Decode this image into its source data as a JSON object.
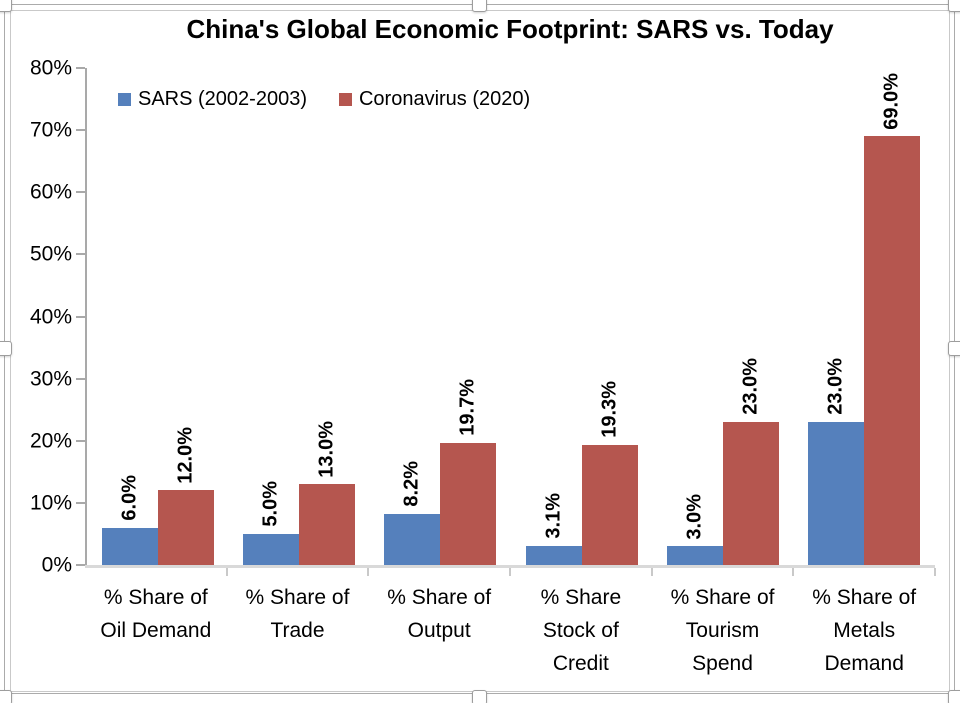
{
  "chart_data": {
    "type": "bar",
    "title": "China's Global Economic Footprint: SARS vs. Today",
    "categories": [
      "% Share of\nOil Demand",
      "% Share of\nTrade",
      "% Share of\nOutput",
      "% Share\nStock of\nCredit",
      "% Share of\nTourism\nSpend",
      "% Share of\nMetals\nDemand"
    ],
    "series": [
      {
        "name": "SARS (2002-2003)",
        "color": "#5580BC",
        "values": [
          6.0,
          5.0,
          8.2,
          3.1,
          3.0,
          23.0
        ],
        "labels": [
          "6.0%",
          "5.0%",
          "8.2%",
          "3.1%",
          "3.0%",
          "23.0%"
        ]
      },
      {
        "name": "Coronavirus (2020)",
        "color": "#B5564F",
        "values": [
          12.0,
          13.0,
          19.7,
          19.3,
          23.0,
          69.0
        ],
        "labels": [
          "12.0%",
          "13.0%",
          "19.7%",
          "19.3%",
          "23.0%",
          "69.0%"
        ]
      }
    ],
    "ylim": [
      0,
      80
    ],
    "ytick_step": 10,
    "ytick_labels": [
      "0%",
      "10%",
      "20%",
      "30%",
      "40%",
      "50%",
      "60%",
      "70%",
      "80%"
    ],
    "grid": false,
    "legend_position": "top-left-inside"
  }
}
